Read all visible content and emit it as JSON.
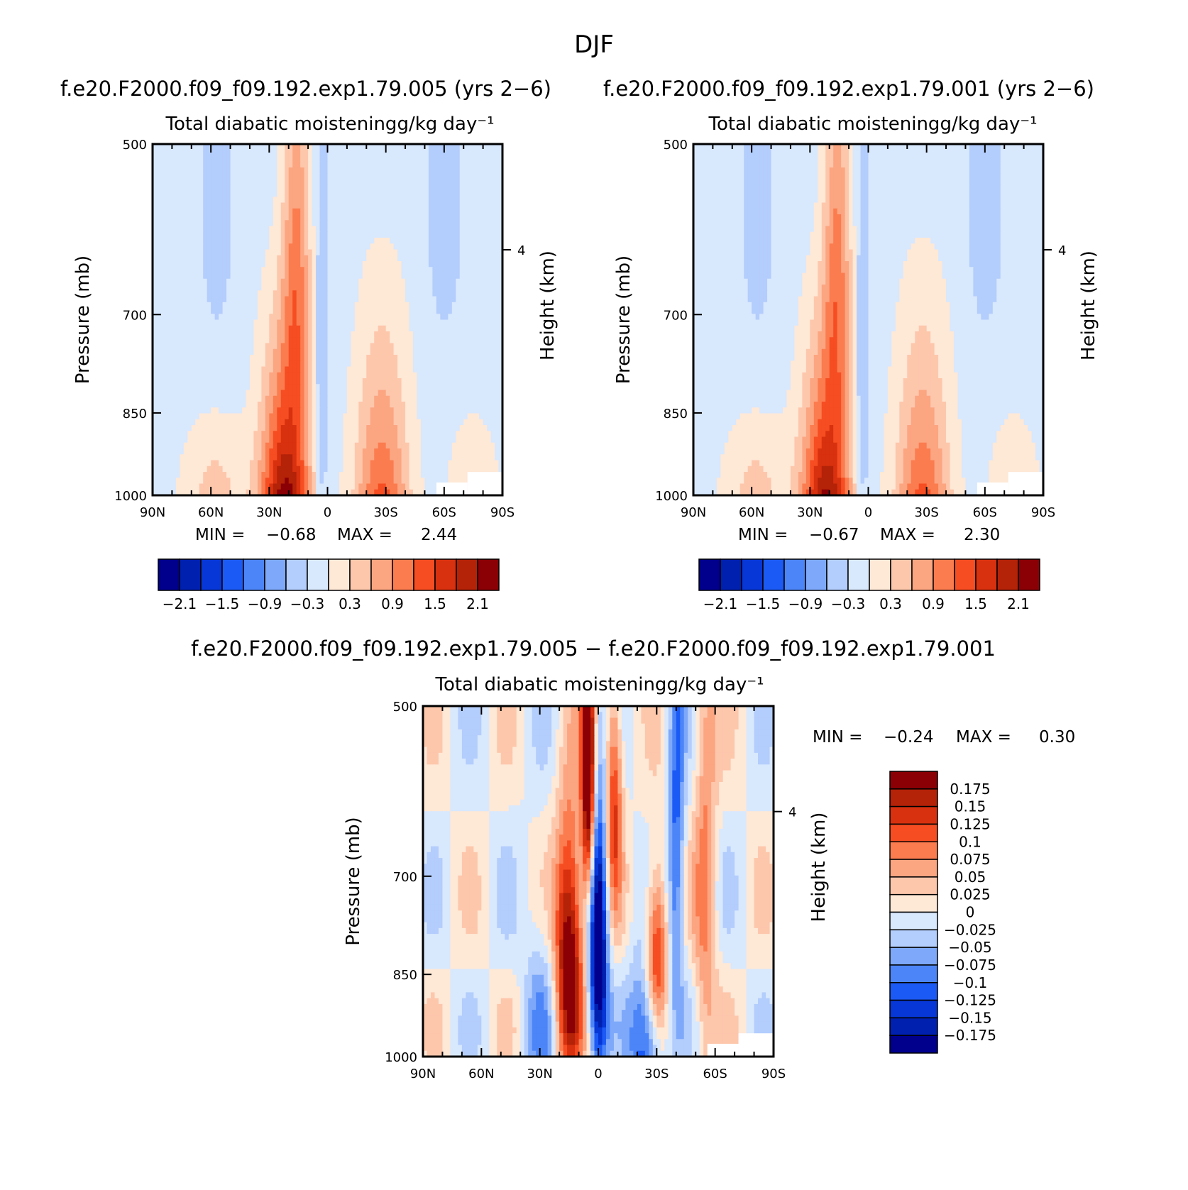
{
  "figure": {
    "title": "DJF",
    "x_tick_labels": [
      "90N",
      "60N",
      "30N",
      "0",
      "30S",
      "60S",
      "90S"
    ],
    "y_tick_labels": [
      "500",
      "700",
      "850",
      "1000"
    ],
    "height_tick_label": "4"
  },
  "chart_data": [
    {
      "type": "heatmap",
      "case_title": "f.e20.F2000.f09_f09.192.exp1.79.005 (yrs 2−6)",
      "title": "Total diabatic moistening",
      "units": "g/kg day⁻¹",
      "xlabel": "",
      "ylabel": "Pressure (mb)",
      "ylabel_right": "Height (km)",
      "x_range": [
        90,
        -90
      ],
      "y_range": [
        500,
        1000
      ],
      "y_ticks": [
        500,
        700,
        850,
        1000
      ],
      "min_label": "MIN =",
      "min": "−0.68",
      "max_label": "MAX =",
      "max": "2.44",
      "colorbar": {
        "orientation": "horizontal",
        "levels": [
          -2.1,
          -1.8,
          -1.5,
          -1.2,
          -0.9,
          -0.6,
          -0.3,
          0,
          0.3,
          0.6,
          0.9,
          1.2,
          1.5,
          1.8,
          2.1
        ],
        "labels": [
          "−2.1",
          "−1.5",
          "−0.9",
          "−0.3",
          "0.3",
          "0.9",
          "1.5",
          "2.1"
        ]
      }
    },
    {
      "type": "heatmap",
      "case_title": "f.e20.F2000.f09_f09.192.exp1.79.001 (yrs 2−6)",
      "title": "Total diabatic moistening",
      "units": "g/kg day⁻¹",
      "xlabel": "",
      "ylabel": "Pressure (mb)",
      "ylabel_right": "Height (km)",
      "x_range": [
        90,
        -90
      ],
      "y_range": [
        500,
        1000
      ],
      "y_ticks": [
        500,
        700,
        850,
        1000
      ],
      "min_label": "MIN =",
      "min": "−0.67",
      "max_label": "MAX =",
      "max": "2.30",
      "colorbar": {
        "orientation": "horizontal",
        "levels": [
          -2.1,
          -1.8,
          -1.5,
          -1.2,
          -0.9,
          -0.6,
          -0.3,
          0,
          0.3,
          0.6,
          0.9,
          1.2,
          1.5,
          1.8,
          2.1
        ],
        "labels": [
          "−2.1",
          "−1.5",
          "−0.9",
          "−0.3",
          "0.3",
          "0.9",
          "1.5",
          "2.1"
        ]
      }
    },
    {
      "type": "heatmap",
      "case_title": "f.e20.F2000.f09_f09.192.exp1.79.005 − f.e20.F2000.f09_f09.192.exp1.79.001",
      "title": "Total diabatic moistening",
      "units": "g/kg day⁻¹",
      "xlabel": "",
      "ylabel": "Pressure (mb)",
      "ylabel_right": "Height (km)",
      "x_range": [
        90,
        -90
      ],
      "y_range": [
        500,
        1000
      ],
      "y_ticks": [
        500,
        700,
        850,
        1000
      ],
      "min_label": "MIN =",
      "min": "−0.24",
      "max_label": "MAX =",
      "max": "0.30",
      "colorbar": {
        "orientation": "vertical",
        "levels": [
          -0.175,
          -0.15,
          -0.125,
          -0.1,
          -0.075,
          -0.05,
          -0.025,
          0,
          0.025,
          0.05,
          0.075,
          0.1,
          0.125,
          0.15,
          0.175
        ],
        "labels": [
          "0.175",
          "0.15",
          "0.125",
          "0.1",
          "0.075",
          "0.05",
          "0.025",
          "0",
          "−0.025",
          "−0.05",
          "−0.075",
          "−0.1",
          "−0.125",
          "−0.15",
          "−0.175"
        ]
      }
    }
  ],
  "palette": [
    "#00008c",
    "#0020b0",
    "#0737d6",
    "#1c5af5",
    "#4c85f8",
    "#7ea9fa",
    "#b3cdfc",
    "#d8e8fd",
    "#fee8d6",
    "#fdc7ac",
    "#fca581",
    "#fb7c4f",
    "#f64d22",
    "#d8310f",
    "#b42208",
    "#8a0005"
  ]
}
